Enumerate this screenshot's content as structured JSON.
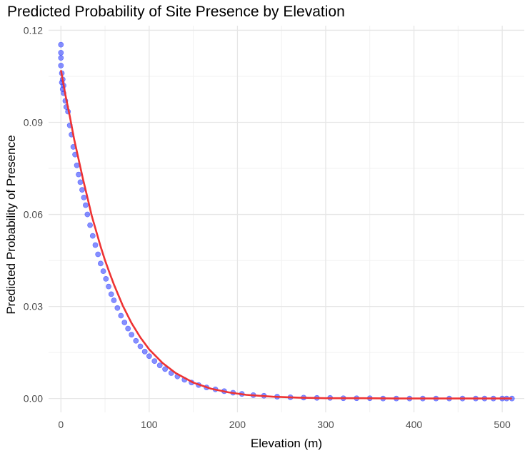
{
  "chart_data": {
    "type": "scatter",
    "title": "Predicted Probability of Site Presence by Elevation",
    "xlabel": "Elevation (m)",
    "ylabel": "Predicted Probability of Presence",
    "xlim": [
      -14,
      525
    ],
    "ylim": [
      -0.0045,
      0.1215
    ],
    "x_ticks": [
      0,
      100,
      200,
      300,
      400,
      500
    ],
    "y_ticks": [
      0.0,
      0.03,
      0.06,
      0.09,
      0.12
    ],
    "x_tick_labels": [
      "0",
      "100",
      "200",
      "300",
      "400",
      "500"
    ],
    "y_tick_labels": [
      "0.00",
      "0.03",
      "0.06",
      "0.09",
      "0.12"
    ],
    "grid": true,
    "series": [
      {
        "kind": "points",
        "color": "#2233ff",
        "x": [
          0,
          0,
          0,
          0,
          1,
          1,
          2,
          2,
          3,
          3,
          5,
          6,
          8,
          10,
          12,
          14,
          16,
          18,
          20,
          22,
          24,
          26,
          28,
          30,
          33,
          36,
          39,
          42,
          45,
          48,
          51,
          54,
          57,
          60,
          64,
          68,
          72,
          76,
          80,
          85,
          90,
          95,
          100,
          106,
          112,
          118,
          125,
          132,
          140,
          148,
          156,
          165,
          175,
          185,
          195,
          205,
          218,
          230,
          245,
          260,
          275,
          290,
          305,
          320,
          335,
          350,
          365,
          380,
          395,
          410,
          425,
          440,
          455,
          470,
          480,
          490,
          500,
          505,
          511
        ],
        "y": [
          0.1153,
          0.1127,
          0.111,
          0.1085,
          0.106,
          0.103,
          0.1008,
          0.104,
          0.0995,
          0.102,
          0.097,
          0.095,
          0.0935,
          0.089,
          0.086,
          0.082,
          0.0795,
          0.076,
          0.073,
          0.0705,
          0.068,
          0.0655,
          0.063,
          0.06,
          0.0565,
          0.053,
          0.05,
          0.047,
          0.044,
          0.0415,
          0.039,
          0.0365,
          0.034,
          0.032,
          0.0295,
          0.027,
          0.0248,
          0.0228,
          0.0208,
          0.0188,
          0.017,
          0.0153,
          0.0138,
          0.0122,
          0.0108,
          0.0096,
          0.0083,
          0.0072,
          0.0061,
          0.0052,
          0.0044,
          0.0036,
          0.003,
          0.0024,
          0.0019,
          0.0015,
          0.0011,
          0.0009,
          0.0006,
          0.0004,
          0.0003,
          0.0002,
          0.0002,
          0.0001,
          0.0001,
          0.0001,
          0.0,
          0.0,
          0.0,
          0.0,
          0.0,
          0.0,
          0.0,
          0.0,
          0.0,
          0.0,
          0.0,
          0.0,
          0.0
        ]
      },
      {
        "kind": "line",
        "color": "#ee3333",
        "x": [
          0,
          5,
          10,
          15,
          20,
          25,
          30,
          35,
          40,
          45,
          50,
          55,
          60,
          70,
          80,
          90,
          100,
          115,
          130,
          150,
          170,
          190,
          210,
          240,
          270,
          300,
          340,
          380,
          420,
          460,
          511
        ],
        "y": [
          0.107,
          0.099,
          0.092,
          0.0845,
          0.078,
          0.0715,
          0.0655,
          0.0595,
          0.0545,
          0.0495,
          0.045,
          0.041,
          0.0372,
          0.0303,
          0.0246,
          0.0199,
          0.016,
          0.0116,
          0.0083,
          0.0052,
          0.0032,
          0.002,
          0.0012,
          0.0006,
          0.0003,
          0.0001,
          0.0001,
          0.0,
          0.0,
          0.0,
          0.0
        ]
      }
    ]
  }
}
